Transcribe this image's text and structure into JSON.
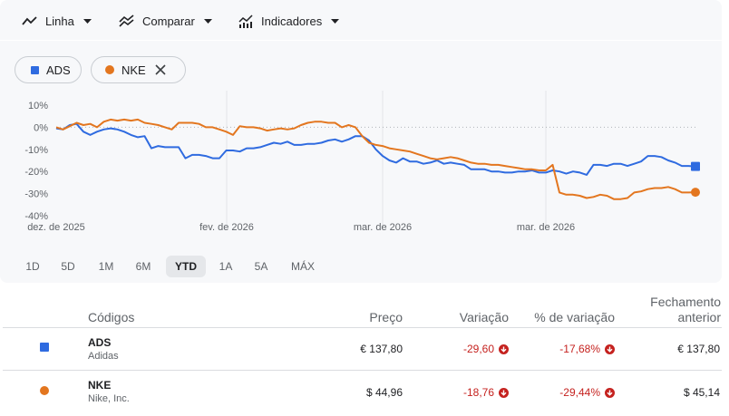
{
  "toolbar": {
    "line_label": "Linha",
    "compare_label": "Comparar",
    "indicators_label": "Indicadores"
  },
  "chips": [
    {
      "label": "ADS",
      "color": "#2f6be0"
    },
    {
      "label": "NKE",
      "color": "#e3761f"
    }
  ],
  "chart_data": {
    "type": "line",
    "y_ticks": [
      "10%",
      "0%",
      "-10%",
      "-20%",
      "-30%",
      "-40%"
    ],
    "ylim": [
      -40,
      10
    ],
    "x_ticks": [
      "dez. de 2025",
      "fev. de 2026",
      "mar. de 2026",
      "mar. de 2026"
    ],
    "baseline": 0,
    "grid": true,
    "series": [
      {
        "name": "ADS",
        "color": "#2f6be0",
        "values": [
          -0.5,
          -1,
          1,
          1.5,
          -2,
          -3.5,
          -2,
          -1,
          -0.5,
          -1,
          -2,
          -3.5,
          -4.5,
          -4,
          -9.5,
          -8.5,
          -9,
          -9,
          -9,
          -14,
          -12.5,
          -12.5,
          -13,
          -14,
          -14,
          -10.5,
          -10.5,
          -11,
          -9.5,
          -9.5,
          -9,
          -8,
          -7,
          -7.5,
          -6.5,
          -8,
          -8,
          -7.5,
          -7.5,
          -7,
          -6,
          -5.5,
          -6.5,
          -5.5,
          -4,
          -4,
          -6,
          -10,
          -13,
          -15,
          -16,
          -14,
          -15.5,
          -15.5,
          -16.5,
          -16,
          -15,
          -16.5,
          -16,
          -16.5,
          -17,
          -19,
          -19,
          -19,
          -20,
          -20,
          -20.5,
          -20.5,
          -20,
          -20,
          -19.5,
          -20.5,
          -20.5,
          -19.5,
          -20,
          -21,
          -20,
          -20.5,
          -21.5,
          -17,
          -17,
          -17.5,
          -16.5,
          -16.5,
          -17.5,
          -16.5,
          -15.5,
          -13,
          -13,
          -13.5,
          -15,
          -16,
          -17.5,
          -17.5,
          -17.7
        ]
      },
      {
        "name": "NKE",
        "color": "#e3761f",
        "values": [
          0,
          -1,
          0.5,
          2,
          1,
          1.5,
          0,
          2.5,
          3.5,
          3,
          3.5,
          3,
          3.5,
          2,
          1.5,
          1,
          0,
          -1,
          2,
          2,
          2,
          1.5,
          0,
          0,
          -1,
          -2,
          -3.5,
          0.5,
          0,
          0,
          -0.5,
          -1.5,
          -1,
          -0.5,
          -1,
          -0.5,
          1,
          2,
          2.5,
          2.5,
          2,
          2,
          0,
          1,
          0,
          -4,
          -7,
          -8,
          -8.5,
          -9.5,
          -10,
          -10.5,
          -11,
          -12,
          -13,
          -14,
          -14.5,
          -14,
          -13.5,
          -14,
          -15,
          -16,
          -16.5,
          -16.5,
          -17,
          -17,
          -17.5,
          -18,
          -18.5,
          -19,
          -19,
          -19.5,
          -19.5,
          -17,
          -29.5,
          -30.5,
          -30.5,
          -31,
          -32,
          -31.5,
          -30.5,
          -31,
          -32.5,
          -32.5,
          -32,
          -29.5,
          -29,
          -28,
          -27.5,
          -27.5,
          -27,
          -28,
          -29.5,
          -29.5,
          -29.4
        ]
      }
    ]
  },
  "ranges": [
    "1D",
    "5D",
    "1M",
    "6M",
    "YTD",
    "1A",
    "5A",
    "MÁX"
  ],
  "active_range": "YTD",
  "table": {
    "headers": {
      "codes": "Códigos",
      "price": "Preço",
      "change": "Variação",
      "pct": "% de variação",
      "prev_l1": "Fechamento",
      "prev_l2": "anterior"
    },
    "rows": [
      {
        "code": "ADS",
        "name": "Adidas",
        "price": "€ 137,80",
        "change": "-29,60",
        "pct": "-17,68%",
        "prev": "€ 137,80",
        "color": "#2f6be0"
      },
      {
        "code": "NKE",
        "name": "Nike, Inc.",
        "price": "$ 44,96",
        "change": "-18,76",
        "pct": "-29,44%",
        "prev": "$ 45,14",
        "color": "#e3761f"
      }
    ]
  }
}
